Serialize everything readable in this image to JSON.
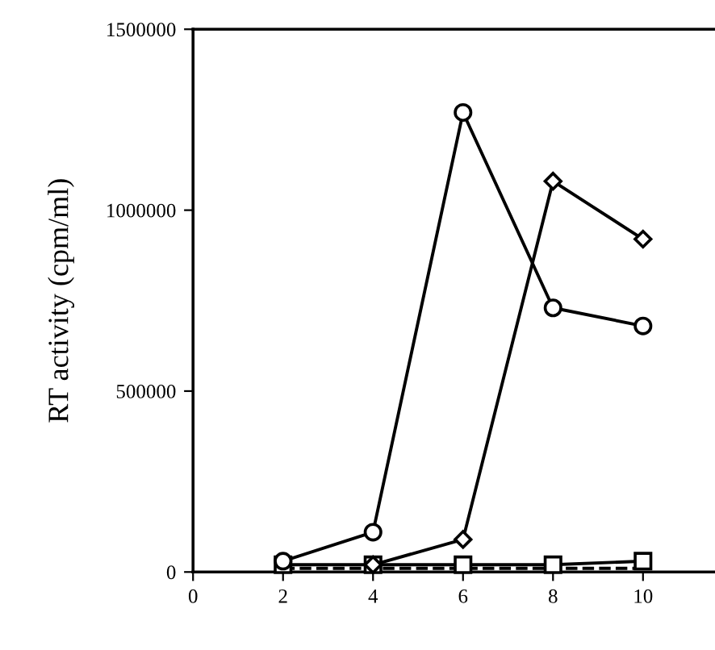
{
  "chart_data": {
    "type": "line",
    "ylabel": "RT activity (cpm/ml)",
    "xlim": [
      0,
      11.6
    ],
    "xticks": [
      0,
      2,
      4,
      6,
      8,
      10
    ],
    "ylim": [
      0,
      1500000
    ],
    "yticks": [
      0,
      500000,
      1000000,
      1500000
    ],
    "grid": false,
    "legend": false,
    "series": [
      {
        "color": "#000000",
        "marker": "circle",
        "line_style": "solid",
        "x": [
          2,
          4,
          6,
          8,
          10
        ],
        "values": [
          30000,
          110000,
          1270000,
          730000,
          680000
        ]
      },
      {
        "color": "#000000",
        "marker": "diamond",
        "line_style": "solid",
        "x": [
          4,
          6,
          8,
          10
        ],
        "values": [
          20000,
          90000,
          1080000,
          920000
        ]
      },
      {
        "color": "#000000",
        "marker": "square",
        "line_style": "solid",
        "x": [
          2,
          4,
          6,
          8,
          10
        ],
        "values": [
          20000,
          20000,
          20000,
          20000,
          30000
        ]
      },
      {
        "color": "#000000",
        "marker": "none",
        "line_style": "dashed",
        "x": [
          2,
          4,
          6,
          8,
          10
        ],
        "values": [
          10000,
          10000,
          10000,
          10000,
          10000
        ]
      }
    ]
  }
}
